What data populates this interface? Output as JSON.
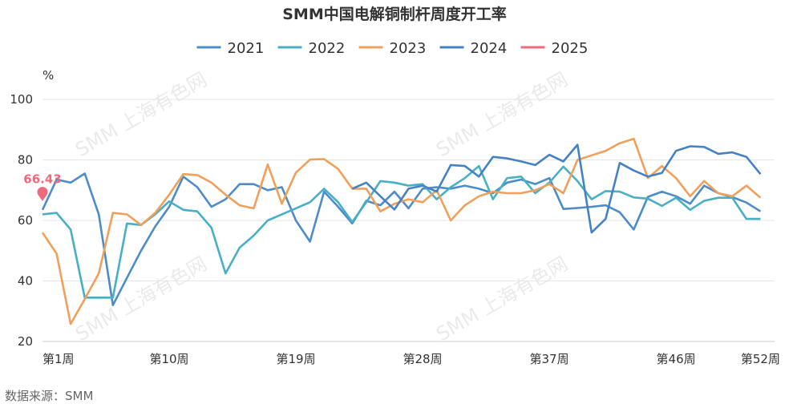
{
  "chart_data": {
    "type": "line",
    "title": "SMM中国电解铜制杆周度开工率",
    "unit": "%",
    "source": "数据来源：SMM",
    "watermark": "SMM 上海有色网",
    "ylim": [
      20,
      100
    ],
    "yticks": [
      20,
      40,
      60,
      80,
      100
    ],
    "x": [
      1,
      2,
      3,
      4,
      5,
      6,
      7,
      8,
      9,
      10,
      11,
      12,
      13,
      14,
      15,
      16,
      17,
      18,
      19,
      20,
      21,
      22,
      23,
      24,
      25,
      26,
      27,
      28,
      29,
      30,
      31,
      32,
      33,
      34,
      35,
      36,
      37,
      38,
      39,
      40,
      41,
      42,
      43,
      44,
      45,
      46,
      47,
      48,
      49,
      50,
      51,
      52,
      53
    ],
    "xtick_labels": [
      {
        "x": 1,
        "label": "第1周"
      },
      {
        "x": 10,
        "label": "第10周"
      },
      {
        "x": 19,
        "label": "第19周"
      },
      {
        "x": 28,
        "label": "第28周"
      },
      {
        "x": 37,
        "label": "第37周"
      },
      {
        "x": 46,
        "label": "第46周"
      },
      {
        "x": 52,
        "label": "第52周"
      }
    ],
    "grid": true,
    "legend_position": "top-center",
    "series": [
      {
        "name": "2021",
        "color": "#4d8cc8",
        "values": [
          63.5,
          73.5,
          72.5,
          75.5,
          62,
          32,
          41,
          50,
          58,
          64.5,
          74.5,
          71,
          64.5,
          67,
          72,
          72,
          70,
          71,
          60,
          53,
          69.5,
          64.5,
          59,
          66.5,
          65,
          69.5,
          64,
          70.5,
          71,
          70.5,
          71.5,
          70.5,
          69,
          72.5,
          73.5,
          72,
          74,
          63.8,
          64.1,
          64.5,
          65,
          62.7,
          57,
          67.8,
          69.5,
          68,
          65.5,
          71.5,
          69,
          67.7,
          65.9,
          63,
          null
        ]
      },
      {
        "name": "2022",
        "color": "#48b0c5",
        "values": [
          62,
          62.5,
          57,
          34.5,
          34.5,
          34.5,
          59,
          58.5,
          62,
          66.3,
          63.5,
          63,
          57.6,
          42.5,
          51,
          55,
          60,
          62,
          64,
          66,
          70.5,
          66,
          59.5,
          66,
          73,
          72.5,
          71.5,
          72,
          67,
          71,
          74,
          78,
          67,
          74,
          74.5,
          69,
          72.5,
          77.8,
          73,
          67,
          69.7,
          69.5,
          67.6,
          67.2,
          64.8,
          67.5,
          63.5,
          66.5,
          67.5,
          67.5,
          60.5,
          60.5,
          null
        ]
      },
      {
        "name": "2023",
        "color": "#f0a05a",
        "values": [
          56,
          49,
          25.8,
          34,
          42.5,
          62.5,
          62,
          58.5,
          62.5,
          68.5,
          75.3,
          75,
          72.5,
          68.5,
          65,
          64,
          78.5,
          65.5,
          75.8,
          80.1,
          80.3,
          77,
          70.5,
          70.5,
          63,
          65.5,
          67,
          66,
          70,
          60,
          65,
          68,
          69.5,
          69,
          69,
          70,
          72,
          69,
          80,
          81.5,
          83,
          85.5,
          87,
          74,
          78,
          74,
          68,
          73,
          69,
          68,
          71.5,
          67.5,
          null
        ]
      },
      {
        "name": "2024",
        "color": "#4582c4",
        "values": [
          null,
          null,
          null,
          null,
          null,
          null,
          null,
          null,
          null,
          null,
          null,
          null,
          null,
          null,
          null,
          null,
          null,
          null,
          null,
          null,
          null,
          null,
          70.5,
          72.5,
          68,
          63.6,
          70.5,
          71.5,
          69.5,
          78.3,
          78,
          74.5,
          81,
          80.5,
          79.5,
          78.3,
          81.7,
          79.5,
          85,
          56,
          60.5,
          79,
          76.5,
          74.5,
          75.7,
          83,
          84.5,
          84.3,
          82,
          82.5,
          81,
          75.3,
          null
        ]
      },
      {
        "name": "2025",
        "color": "#ee6a7a",
        "values": [
          66.43,
          null,
          null,
          null,
          null,
          null,
          null,
          null,
          null,
          null,
          null,
          null,
          null,
          null,
          null,
          null,
          null,
          null,
          null,
          null,
          null,
          null,
          null,
          null,
          null,
          null,
          null,
          null,
          null,
          null,
          null,
          null,
          null,
          null,
          null,
          null,
          null,
          null,
          null,
          null,
          null,
          null,
          null,
          null,
          null,
          null,
          null,
          null,
          null,
          null,
          null,
          null,
          null
        ]
      }
    ],
    "annotations": [
      {
        "series": "2025",
        "x": 1,
        "label": "66.43"
      }
    ]
  }
}
